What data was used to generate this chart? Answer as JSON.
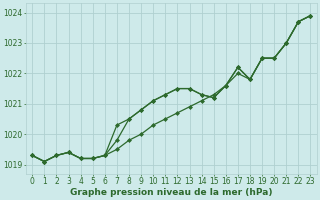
{
  "background_color": "#ceeaea",
  "grid_color": "#b0d0d0",
  "line_color": "#2d6a2d",
  "xlabel": "Graphe pression niveau de la mer (hPa)",
  "hours": [
    0,
    1,
    2,
    3,
    4,
    5,
    6,
    7,
    8,
    9,
    10,
    11,
    12,
    13,
    14,
    15,
    16,
    17,
    18,
    19,
    20,
    21,
    22,
    23
  ],
  "line1": [
    1019.3,
    1019.1,
    1019.3,
    1019.4,
    1019.2,
    1019.2,
    1019.3,
    1019.5,
    1019.8,
    1020.0,
    1020.3,
    1020.5,
    1020.7,
    1020.9,
    1021.1,
    1021.3,
    1021.6,
    1022.0,
    1021.8,
    1022.5,
    1022.5,
    1023.0,
    1023.7,
    1023.9
  ],
  "line2": [
    1019.3,
    1019.1,
    1019.3,
    1019.4,
    1019.2,
    1019.2,
    1019.3,
    1019.8,
    1020.5,
    1020.8,
    1021.1,
    1021.3,
    1021.5,
    1021.5,
    1021.3,
    1021.2,
    1021.6,
    1022.2,
    1021.8,
    1022.5,
    1022.5,
    1023.0,
    1023.7,
    1023.9
  ],
  "line3": [
    1019.3,
    1019.1,
    1019.3,
    1019.4,
    1019.2,
    1019.2,
    1019.3,
    1020.3,
    1020.5,
    1020.8,
    1021.1,
    1021.3,
    1021.5,
    1021.5,
    1021.3,
    1021.2,
    1021.6,
    1022.2,
    1021.8,
    1022.5,
    1022.5,
    1023.0,
    1023.7,
    1023.9
  ],
  "ylim_min": 1018.7,
  "ylim_max": 1024.3,
  "yticks": [
    1019,
    1020,
    1021,
    1022,
    1023,
    1024
  ],
  "xticks": [
    0,
    1,
    2,
    3,
    4,
    5,
    6,
    7,
    8,
    9,
    10,
    11,
    12,
    13,
    14,
    15,
    16,
    17,
    18,
    19,
    20,
    21,
    22,
    23
  ],
  "marker": "D",
  "markersize": 2.0,
  "linewidth": 0.9,
  "tick_fontsize": 5.5,
  "label_fontsize": 6.5,
  "label_fontweight": "bold"
}
